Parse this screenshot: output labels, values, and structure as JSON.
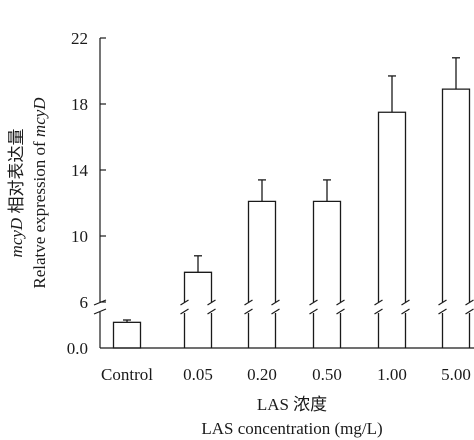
{
  "chart_data": {
    "type": "bar",
    "categories": [
      "Control",
      "0.05",
      "0.20",
      "0.50",
      "1.00",
      "5.00"
    ],
    "values": [
      2.2,
      7.8,
      12.1,
      12.1,
      17.5,
      18.9
    ],
    "errors": [
      0.2,
      1.0,
      1.3,
      1.3,
      2.2,
      1.9
    ],
    "xlabel_cn": "LAS 浓度",
    "xlabel_en": "LAS concentration (mg/L)",
    "ylabel_cn_prefix": "mcyD",
    "ylabel_cn_suffix": " 相对表达量",
    "ylabel_en_prefix": "Relatve expression of ",
    "ylabel_en_italic": "mcyD",
    "axis_break": true,
    "upper_ylim": [
      6,
      22
    ],
    "upper_ticks": [
      "6",
      "10",
      "14",
      "18",
      "22"
    ],
    "lower_ylim": [
      0,
      3
    ],
    "lower_ticks": [
      "0.0"
    ],
    "bar_fill": "#ffffff",
    "bar_stroke": "#1a1a1a",
    "grid": false
  }
}
